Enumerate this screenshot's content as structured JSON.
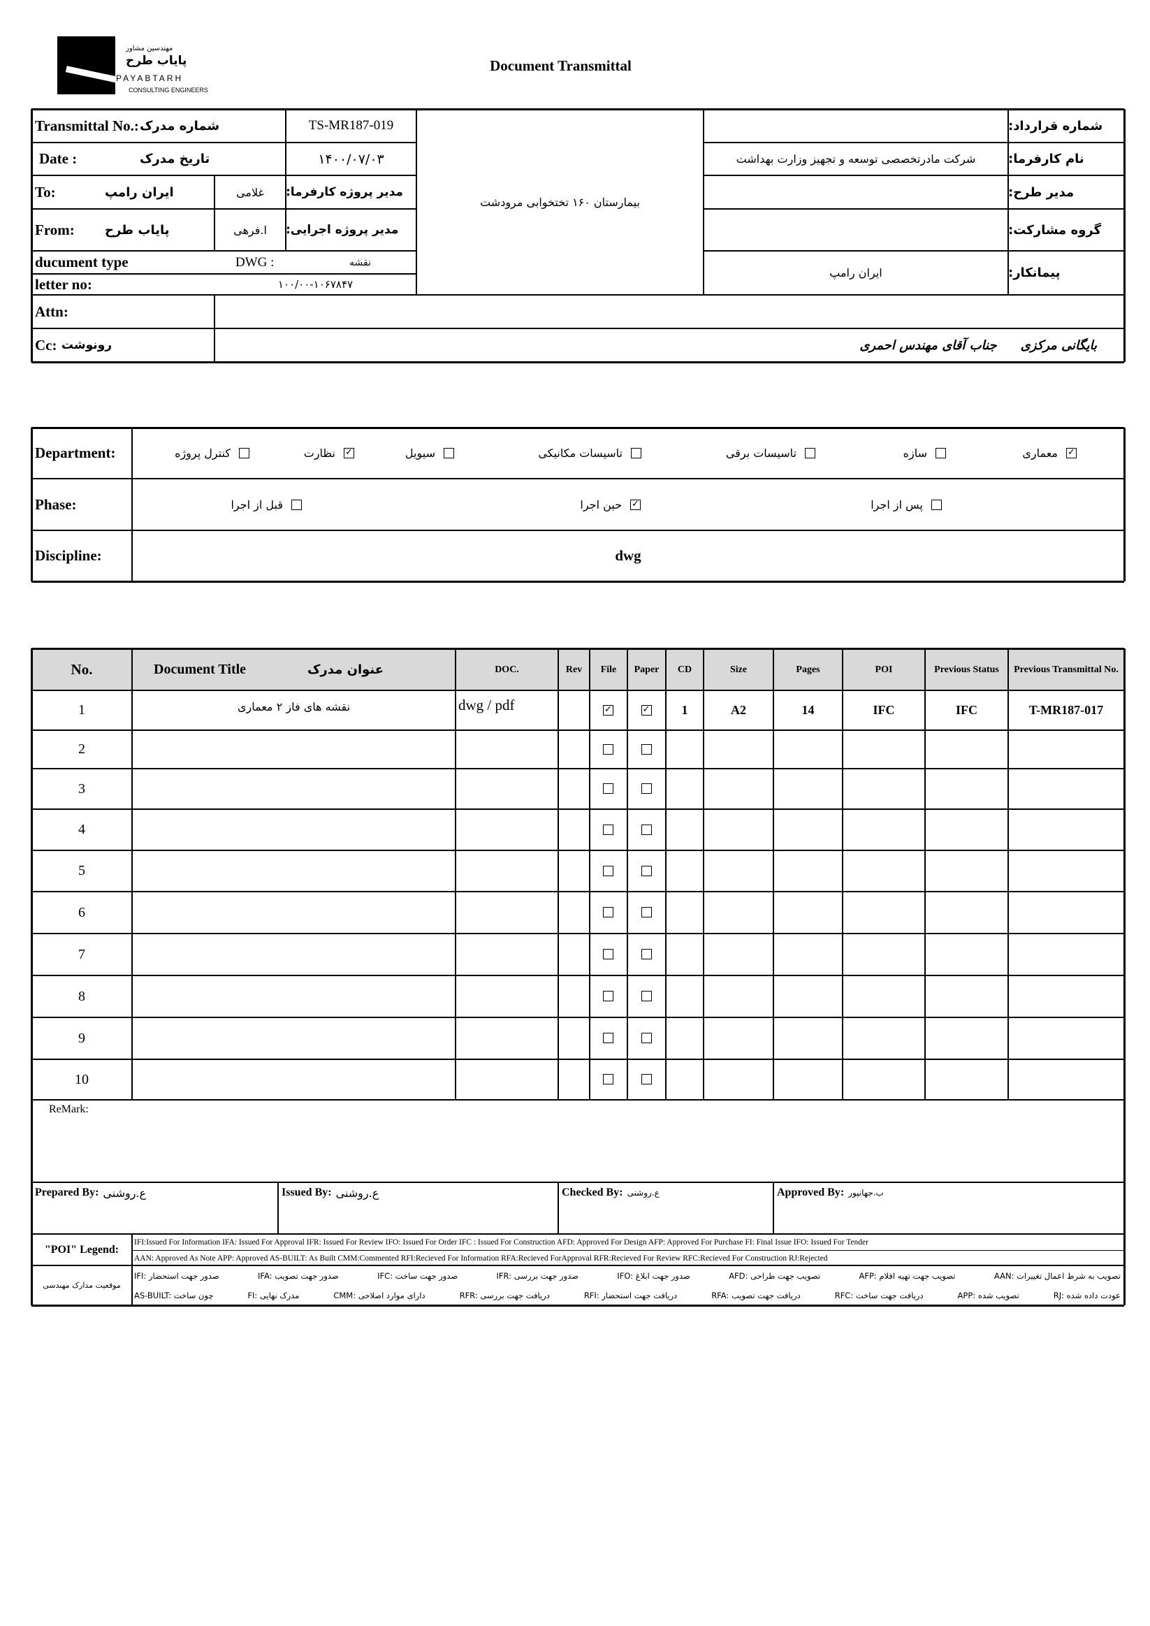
{
  "header": {
    "logo": {
      "firm_fa_small": "مهندسین مشاور",
      "firm_fa": "پایاب طرح",
      "firm_en": "PAYABTARH",
      "subtitle": "CONSULTING ENGINEERS"
    },
    "title": "Document Transmittal"
  },
  "info": {
    "transmittal_no": {
      "label_en": "Transmittal No.:",
      "label_fa": "شماره مدرک",
      "value": "TS-MR187-019"
    },
    "date": {
      "label_en": "Date :",
      "label_fa": "تاریخ مدرک",
      "value": "۱۴۰۰/۰۷/۰۳"
    },
    "to": {
      "label_en": "To:",
      "company": "ایران رامپ",
      "manager": "غلامی",
      "manager_label": "مدیر پروژه کارفرما:"
    },
    "from": {
      "label_en": "From:",
      "company": "پایاب طرح",
      "manager": "ا.فرهی",
      "manager_label": "مدیر پروژه اجرایی:"
    },
    "document_type": {
      "label_en": "ducument type",
      "value": "DWG :",
      "value_fa": "نقشه"
    },
    "letter_no": {
      "label_en": "letter no:",
      "value": "۱۰۰/۰۰-۱۰۶۷۸۴۷"
    },
    "project": "بیمارستان ۱۶۰ تختخوابی مرودشت",
    "right_fields": [
      {
        "label": "شماره قرارداد:"
      },
      {
        "label": "نام کارفرما:",
        "value": "شرکت مادرتخصصی توسعه و تجهیز وزارت بهداشت"
      },
      {
        "label": "مدیر طرح:"
      },
      {
        "label": "گروه مشارکت:"
      },
      {
        "label": "پیمانکار:",
        "value": "ایران رامپ"
      }
    ],
    "attn": {
      "label": "Attn:"
    },
    "cc": {
      "label_en": "Cc:",
      "label_fa": "رونوشت",
      "values": [
        "بایگانی مرکزی",
        "جناب آقای مهندس احمری"
      ]
    }
  },
  "classification": {
    "department": {
      "label": "Department:",
      "options": [
        {
          "label": "معماری",
          "checked": true
        },
        {
          "label": "سازه",
          "checked": false
        },
        {
          "label": "تاسیسات برقی",
          "checked": false
        },
        {
          "label": "تاسیسات مکانیکی",
          "checked": false
        },
        {
          "label": "سیویل",
          "checked": false
        },
        {
          "label": "نظارت",
          "checked": true
        },
        {
          "label": "کنترل پروژه",
          "checked": false
        }
      ]
    },
    "phase": {
      "label": "Phase:",
      "options": [
        {
          "label": "پس از اجرا",
          "checked": false
        },
        {
          "label": "حین اجرا",
          "checked": true
        },
        {
          "label": "قبل از اجرا",
          "checked": false
        }
      ]
    },
    "discipline": {
      "label": "Discipline:",
      "value": "dwg"
    }
  },
  "documents": {
    "columns": [
      "No.",
      {
        "en": "Document Title",
        "fa": "عنوان مدرک"
      },
      "DOC.",
      "Rev",
      "File",
      "Paper",
      "CD",
      "Size",
      "Pages",
      "POI",
      "Previous Status",
      "Previous Transmittal No."
    ],
    "rows": [
      {
        "no": 1,
        "title": "نقشه های فاز ۲ معماری",
        "doc": "dwg / pdf",
        "file": true,
        "paper": true,
        "cd": 1,
        "size": "A2",
        "pages": 14,
        "poi": "IFC",
        "previous_status": "IFC",
        "previous_transmittal": "T-MR187-017"
      },
      {
        "no": 2,
        "file": false,
        "paper": false
      },
      {
        "no": 3,
        "file": false,
        "paper": false
      },
      {
        "no": 4,
        "file": false,
        "paper": false
      },
      {
        "no": 5,
        "file": false,
        "paper": false
      },
      {
        "no": 6,
        "file": false,
        "paper": false
      },
      {
        "no": 7,
        "file": false,
        "paper": false
      },
      {
        "no": 8,
        "file": false,
        "paper": false
      },
      {
        "no": 9,
        "file": false,
        "paper": false
      },
      {
        "no": 10,
        "file": false,
        "paper": false
      }
    ]
  },
  "remark": {
    "label": "ReMark:"
  },
  "signatures": [
    {
      "label": "Prepared By:",
      "name": "ع.روشنی"
    },
    {
      "label": "Issued By:",
      "name": "ع.روشنی"
    },
    {
      "label": "Checked By:",
      "name": "ع.روشنی"
    },
    {
      "label": "Approved By:",
      "name": "ب.جهانپور"
    }
  ],
  "legend": {
    "poi_label": "\"POI\" Legend:",
    "poi_lines": [
      "IFI:Issued For Information IFA: Issued For Approval IFR: Issued For Review  IFO: Issued For Order IFC : Issued For Construction AFD: Approved For Design AFP: Approved For Purchase FI: Final Issue IFO: Issued For Tender",
      "AAN: Approved As Note APP: Approved AS-BUILT: As Built CMM:Commented RFI:Recieved For Information RFA:Recieved ForApproval RFR:Recieved For Review RFC:Recieved For Construction RJ:Rejected"
    ],
    "fa_label": "موقعیت مدارک مهندسی",
    "fa_rows": [
      [
        "IFI: صدور جهت استحضار",
        "IFA: صدور جهت تصویب",
        "IFC: صدور جهت ساخت",
        "IFR: صدور جهت بررسی",
        "IFO: صدور جهت ابلاغ",
        "AFD: تصویب جهت طراحی",
        "AFP: تصویب جهت تهیه اقلام",
        "AAN: تصویب به شرط اعمال تغییرات"
      ],
      [
        "AS-BUILT: چون ساخت",
        "FI: مدرک نهایی",
        "CMM: دارای موارد اصلاحی",
        "RFR: دریافت جهت بررسی",
        "RFI: دریافت جهت استحضار",
        "RFA: دریافت جهت تصویب",
        "RFC: دریافت جهت ساخت",
        "APP: تصویب شده",
        "RJ: عودت داده شده"
      ]
    ]
  }
}
